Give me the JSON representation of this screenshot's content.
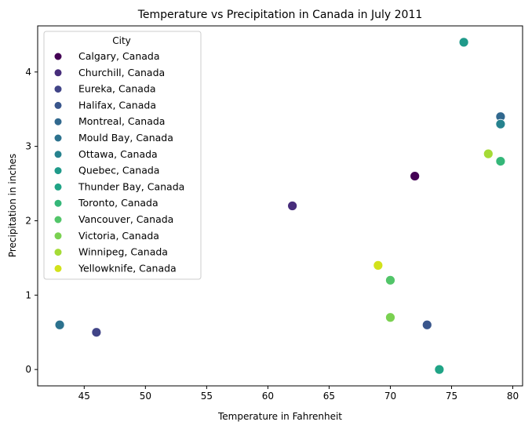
{
  "chart_data": {
    "type": "scatter",
    "title": "Temperature vs Precipitation in Canada in July 2011",
    "xlabel": "Temperature in Fahrenheit",
    "ylabel": "Precipitation in inches",
    "xlim": [
      41.2,
      80.8
    ],
    "ylim": [
      -0.22,
      4.62
    ],
    "xticks": [
      45,
      50,
      55,
      60,
      65,
      70,
      75,
      80
    ],
    "yticks": [
      0,
      1,
      2,
      3,
      4
    ],
    "grid": false,
    "legend": {
      "title": "City",
      "placement": "top-left"
    },
    "series": [
      {
        "name": "Calgary, Canada",
        "color": "#440154",
        "x": [
          72
        ],
        "y": [
          2.6
        ]
      },
      {
        "name": "Churchill, Canada",
        "color": "#472d7b",
        "x": [
          62
        ],
        "y": [
          2.2
        ]
      },
      {
        "name": "Eureka, Canada",
        "color": "#414487",
        "x": [
          46
        ],
        "y": [
          0.5
        ]
      },
      {
        "name": "Halifax, Canada",
        "color": "#39568c",
        "x": [
          73
        ],
        "y": [
          0.6
        ]
      },
      {
        "name": "Montreal, Canada",
        "color": "#31688e",
        "x": [
          79
        ],
        "y": [
          3.4
        ]
      },
      {
        "name": "Mould Bay, Canada",
        "color": "#2c728e",
        "x": [
          43
        ],
        "y": [
          0.6
        ]
      },
      {
        "name": "Ottawa, Canada",
        "color": "#26828e",
        "x": [
          79
        ],
        "y": [
          3.3
        ]
      },
      {
        "name": "Quebec, Canada",
        "color": "#1f9a8a",
        "x": [
          76
        ],
        "y": [
          4.4
        ]
      },
      {
        "name": "Thunder Bay, Canada",
        "color": "#20a486",
        "x": [
          74
        ],
        "y": [
          0.0
        ]
      },
      {
        "name": "Toronto, Canada",
        "color": "#35b779",
        "x": [
          79
        ],
        "y": [
          2.8
        ]
      },
      {
        "name": "Vancouver, Canada",
        "color": "#52c569",
        "x": [
          70
        ],
        "y": [
          1.2
        ]
      },
      {
        "name": "Victoria, Canada",
        "color": "#7ad151",
        "x": [
          70
        ],
        "y": [
          0.7
        ]
      },
      {
        "name": "Winnipeg, Canada",
        "color": "#a5db36",
        "x": [
          78
        ],
        "y": [
          2.9
        ]
      },
      {
        "name": "Yellowknife, Canada",
        "color": "#d2e21b",
        "x": [
          69
        ],
        "y": [
          1.4
        ]
      }
    ]
  }
}
